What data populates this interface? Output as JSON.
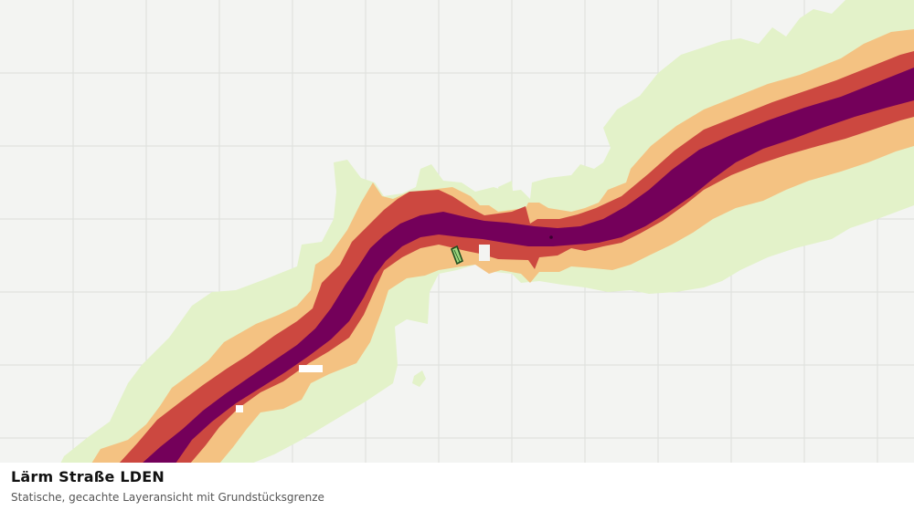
{
  "map": {
    "background_color": "#f3f4f2",
    "grid_color": "#dcdedb",
    "noise_bands": [
      {
        "band": "outer",
        "color": "#e3f2c9"
      },
      {
        "band": "band-2",
        "color": "#f4c282"
      },
      {
        "band": "band-3",
        "color": "#cc4840"
      },
      {
        "band": "core",
        "color": "#74005a"
      }
    ],
    "parcel_boundary_color": "#1f4f1f",
    "parcel_fill_color": "#9ed77f"
  },
  "caption": {
    "title": "Lärm Straße LDEN",
    "subtitle": "Statische, gecachte Layeransicht mit Grundstücksgrenze"
  }
}
